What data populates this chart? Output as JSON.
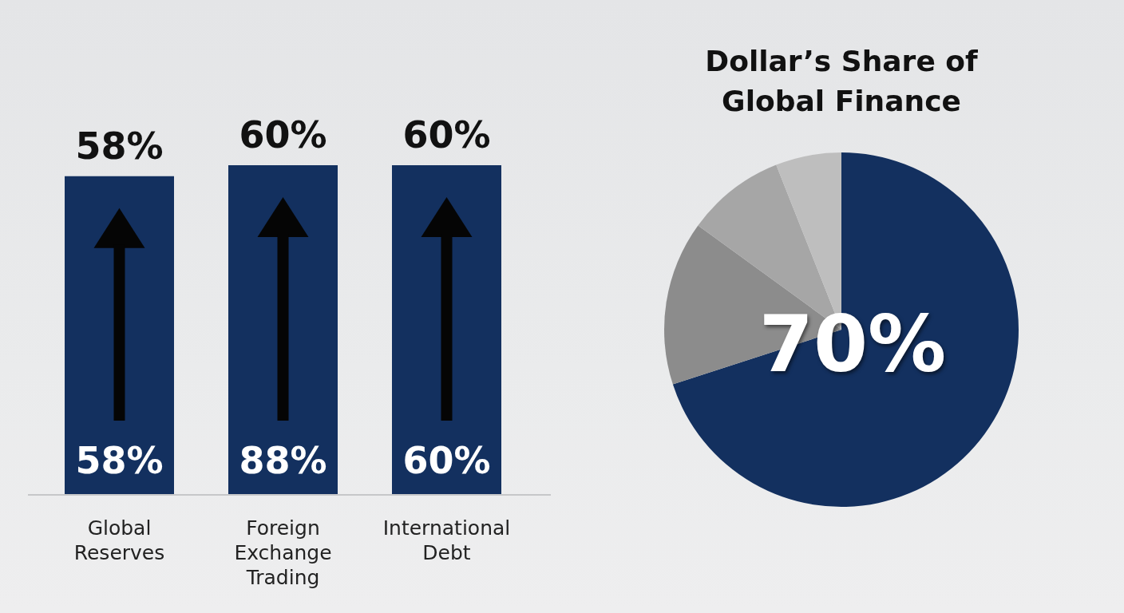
{
  "chart_data": [
    {
      "type": "bar",
      "categories": [
        "Global Reserves",
        "Foreign Exchange Trading",
        "International Debt"
      ],
      "values": [
        58,
        60,
        60
      ],
      "color": "#13305f",
      "value_labels": [
        "58%",
        "60%",
        "60%"
      ],
      "annotations": [
        "58%",
        "88%",
        "60%"
      ]
    },
    {
      "type": "pie",
      "title": "Dollar’s Share of Global Finance",
      "categories": [
        null,
        null,
        null,
        null
      ],
      "values": [
        70,
        15,
        9,
        6
      ],
      "colors": [
        "#13305f",
        "#8c8c8c",
        "#a6a6a6",
        "#bebebe"
      ],
      "value_labels": [
        "70%",
        null,
        null,
        null
      ]
    }
  ]
}
